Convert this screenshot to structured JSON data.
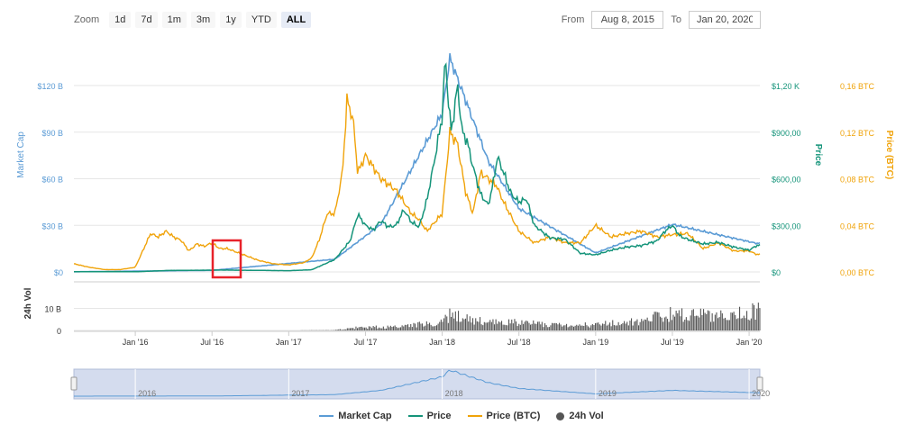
{
  "toolbar": {
    "zoom_label": "Zoom",
    "zoom_buttons": [
      "1d",
      "7d",
      "1m",
      "3m",
      "1y",
      "YTD",
      "ALL"
    ],
    "active_zoom": "ALL",
    "from_label": "From",
    "from_value": "Aug 8, 2015",
    "to_label": "To",
    "to_value": "Jan 20, 2020"
  },
  "colors": {
    "market_cap": "#5b9bd5",
    "price": "#15947a",
    "price_btc": "#f0a30a",
    "volume": "#555555",
    "navigator_fill": "#ccd6eb",
    "highlight_box": "#e8222a"
  },
  "chart_data": {
    "type": "line",
    "x_ticks": [
      "Jan '16",
      "Jul '16",
      "Jan '17",
      "Jul '17",
      "Jan '18",
      "Jul '18",
      "Jan '19",
      "Jul '19",
      "Jan '20"
    ],
    "y_axes": {
      "market_cap": {
        "label": "Market Cap",
        "ticks": [
          "$0",
          "$30 B",
          "$60 B",
          "$90 B",
          "$120 B"
        ],
        "range": [
          0,
          120
        ]
      },
      "price": {
        "label": "Price",
        "ticks": [
          "$0",
          "$300,00",
          "$600,00",
          "$900,00",
          "$1,20 K"
        ],
        "range": [
          0,
          1200
        ]
      },
      "price_btc": {
        "label": "Price (BTC)",
        "ticks": [
          "0,00 BTC",
          "0,04 BTC",
          "0,08 BTC",
          "0,12 BTC",
          "0,16 BTC"
        ],
        "range": [
          0,
          0.16
        ]
      },
      "volume": {
        "label": "24h Vol",
        "ticks": [
          "0",
          "10 B"
        ],
        "range": [
          0,
          20
        ]
      }
    },
    "series": [
      {
        "name": "Price",
        "x": [
          2015.6,
          2015.8,
          2016.0,
          2016.2,
          2016.4,
          2016.6,
          2016.8,
          2017.0,
          2017.15,
          2017.3,
          2017.4,
          2017.45,
          2017.5,
          2017.55,
          2017.6,
          2017.65,
          2017.7,
          2017.75,
          2017.8,
          2017.85,
          2017.9,
          2017.95,
          2018.0,
          2018.02,
          2018.04,
          2018.06,
          2018.08,
          2018.1,
          2018.13,
          2018.16,
          2018.2,
          2018.25,
          2018.3,
          2018.33,
          2018.36,
          2018.4,
          2018.45,
          2018.5,
          2018.55,
          2018.6,
          2018.7,
          2018.8,
          2018.9,
          2019.0,
          2019.1,
          2019.2,
          2019.3,
          2019.4,
          2019.45,
          2019.5,
          2019.55,
          2019.6,
          2019.7,
          2019.8,
          2019.9,
          2020.0,
          2020.05
        ],
        "values": [
          1,
          1,
          1,
          9,
          11,
          12,
          10,
          8,
          14,
          80,
          200,
          370,
          300,
          270,
          330,
          290,
          300,
          400,
          320,
          290,
          460,
          720,
          1000,
          1390,
          1100,
          900,
          1050,
          1200,
          900,
          850,
          680,
          500,
          430,
          560,
          740,
          640,
          500,
          450,
          470,
          300,
          220,
          210,
          120,
          110,
          140,
          160,
          170,
          200,
          260,
          300,
          230,
          210,
          180,
          190,
          160,
          140,
          170
        ]
      },
      {
        "name": "Price (BTC)",
        "x": [
          2015.6,
          2015.7,
          2015.8,
          2015.9,
          2016.0,
          2016.1,
          2016.15,
          2016.2,
          2016.25,
          2016.3,
          2016.35,
          2016.4,
          2016.45,
          2016.5,
          2016.55,
          2016.6,
          2016.7,
          2016.8,
          2016.9,
          2017.0,
          2017.1,
          2017.15,
          2017.2,
          2017.25,
          2017.3,
          2017.35,
          2017.38,
          2017.42,
          2017.45,
          2017.5,
          2017.55,
          2017.6,
          2017.7,
          2017.8,
          2017.85,
          2017.9,
          2018.0,
          2018.05,
          2018.1,
          2018.15,
          2018.2,
          2018.25,
          2018.3,
          2018.35,
          2018.4,
          2018.5,
          2018.55,
          2018.6,
          2018.7,
          2018.8,
          2018.9,
          2019.0,
          2019.1,
          2019.2,
          2019.3,
          2019.4,
          2019.5,
          2019.6,
          2019.7,
          2019.8,
          2019.9,
          2020.0,
          2020.05
        ],
        "values": [
          0.007,
          0.004,
          0.002,
          0.002,
          0.004,
          0.033,
          0.03,
          0.035,
          0.03,
          0.027,
          0.018,
          0.024,
          0.022,
          0.025,
          0.02,
          0.02,
          0.015,
          0.01,
          0.007,
          0.006,
          0.008,
          0.012,
          0.028,
          0.05,
          0.05,
          0.085,
          0.148,
          0.13,
          0.085,
          0.1,
          0.09,
          0.08,
          0.07,
          0.05,
          0.045,
          0.035,
          0.05,
          0.12,
          0.11,
          0.07,
          0.05,
          0.085,
          0.08,
          0.075,
          0.06,
          0.035,
          0.03,
          0.025,
          0.03,
          0.025,
          0.025,
          0.04,
          0.03,
          0.033,
          0.035,
          0.03,
          0.032,
          0.033,
          0.02,
          0.025,
          0.018,
          0.018,
          0.015
        ]
      },
      {
        "name": "Market Cap",
        "x": [
          2015.6,
          2016.5,
          2017.3,
          2017.6,
          2018.0,
          2018.05,
          2018.3,
          2018.5,
          2019.0,
          2019.5,
          2020.05
        ],
        "values": [
          0.1,
          1,
          8,
          30,
          100,
          135,
          70,
          40,
          12,
          30,
          18
        ]
      },
      {
        "name": "24h Vol",
        "x": [
          2015.6,
          2016.0,
          2016.5,
          2017.0,
          2017.3,
          2017.45,
          2017.7,
          2017.95,
          2018.05,
          2018.2,
          2018.5,
          2018.8,
          2019.0,
          2019.3,
          2019.5,
          2019.7,
          2019.9,
          2020.05
        ],
        "values": [
          0,
          0,
          0,
          0,
          0.2,
          1.5,
          2,
          4,
          8,
          5,
          4,
          2.5,
          3,
          5,
          9,
          8,
          8,
          10
        ]
      }
    ],
    "navigator_labels": [
      "2016",
      "2017",
      "2018",
      "2019",
      "2020"
    ],
    "grid": true,
    "legend_position": "bottom"
  },
  "legend": [
    {
      "label": "Market Cap",
      "color": "#5b9bd5"
    },
    {
      "label": "Price",
      "color": "#15947a"
    },
    {
      "label": "Price (BTC)",
      "color": "#f0a30a"
    },
    {
      "label": "24h Vol",
      "color": "#555555"
    }
  ]
}
